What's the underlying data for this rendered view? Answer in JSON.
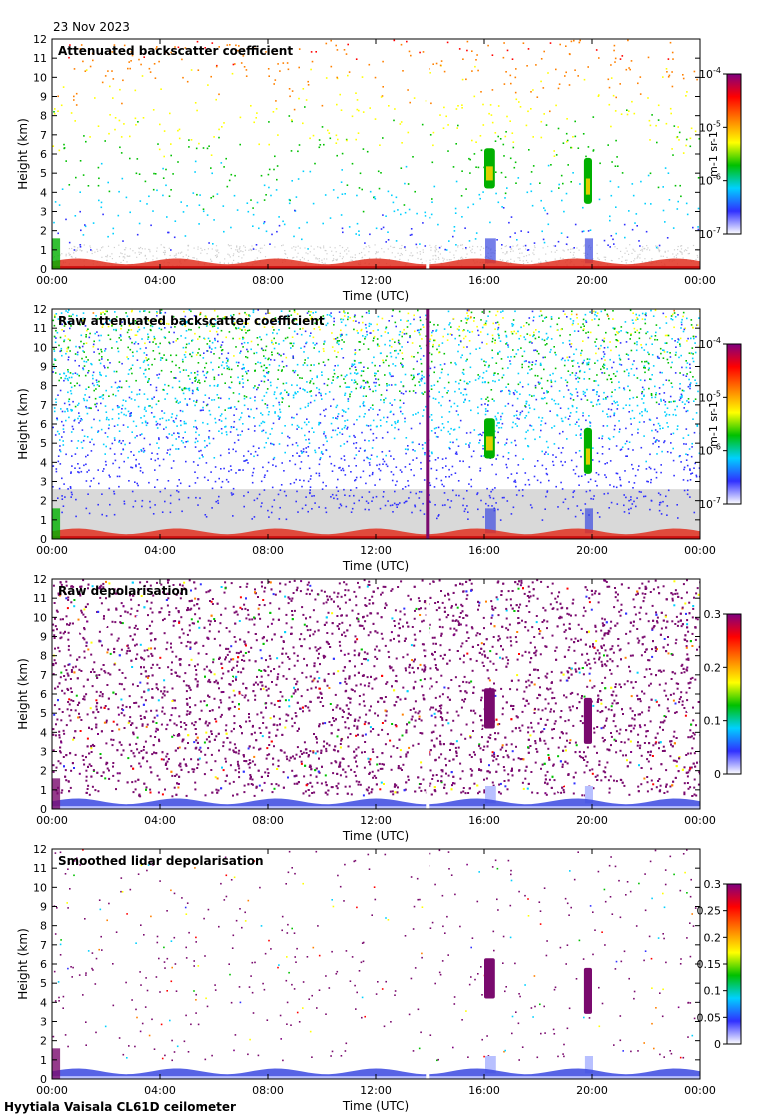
{
  "date": "23 Nov 2023",
  "footer": "Hyytiala Vaisala CL61D ceilometer",
  "colors": {
    "cloud_green": "#00b000",
    "cloud_yellow": "#e0d000",
    "depol_purple": "#7a0a6e",
    "background_gray": "#d9d9d9",
    "noise_blue": "#1f2fd8"
  },
  "chart_data": [
    {
      "type": "heatmap",
      "title": "Attenuated backscatter coefficient",
      "xlabel": "Time (UTC)",
      "ylabel": "Height (km)",
      "x_ticks": [
        "00:00",
        "04:00",
        "08:00",
        "12:00",
        "16:00",
        "20:00",
        "00:00"
      ],
      "y_ticks": [
        "0",
        "1",
        "2",
        "3",
        "4",
        "5",
        "6",
        "7",
        "8",
        "9",
        "10",
        "11",
        "12"
      ],
      "ylim": [
        0,
        12
      ],
      "xlim_hours": [
        0,
        24
      ],
      "colorbar": {
        "scale": "log",
        "ticks": [
          "10-7",
          "10-6",
          "10-5",
          "10-4"
        ],
        "tick_values": [
          1e-07,
          1e-06,
          1e-05,
          0.0001
        ],
        "label": "m-1 sr-1",
        "palette": [
          "#ffffff",
          "#3030ff",
          "#00d0ff",
          "#00c000",
          "#ffff00",
          "#ff8000",
          "#ff0000",
          "#800080"
        ]
      },
      "features": [
        {
          "kind": "cloud",
          "t_start_h": 16.0,
          "t_end_h": 16.4,
          "z_bottom_km": 4.2,
          "z_top_km": 6.3
        },
        {
          "kind": "cloud",
          "t_start_h": 19.7,
          "t_end_h": 20.0,
          "z_bottom_km": 3.4,
          "z_top_km": 5.8
        },
        {
          "kind": "boundary_layer",
          "z_top_km": 0.4
        },
        {
          "kind": "data_gap",
          "t_h": 13.9
        }
      ]
    },
    {
      "type": "heatmap",
      "title": "Raw attenuated backscatter coefficient",
      "xlabel": "Time (UTC)",
      "ylabel": "Height (km)",
      "x_ticks": [
        "00:00",
        "04:00",
        "08:00",
        "12:00",
        "16:00",
        "20:00",
        "00:00"
      ],
      "y_ticks": [
        "0",
        "1",
        "2",
        "3",
        "4",
        "5",
        "6",
        "7",
        "8",
        "9",
        "10",
        "11",
        "12"
      ],
      "ylim": [
        0,
        12
      ],
      "xlim_hours": [
        0,
        24
      ],
      "colorbar": {
        "scale": "log",
        "ticks": [
          "10-7",
          "10-6",
          "10-5",
          "10-4"
        ],
        "tick_values": [
          1e-07,
          1e-06,
          1e-05,
          0.0001
        ],
        "label": "m-1 sr-1",
        "palette": [
          "#ffffff",
          "#3030ff",
          "#00d0ff",
          "#00c000",
          "#ffff00",
          "#ff8000",
          "#ff0000",
          "#800080"
        ]
      },
      "features": [
        {
          "kind": "cloud",
          "t_start_h": 16.0,
          "t_end_h": 16.4,
          "z_bottom_km": 4.2,
          "z_top_km": 6.3
        },
        {
          "kind": "cloud",
          "t_start_h": 19.7,
          "t_end_h": 20.0,
          "z_bottom_km": 3.4,
          "z_top_km": 5.8
        },
        {
          "kind": "boundary_layer",
          "z_top_km": 0.4
        },
        {
          "kind": "spike",
          "t_h": 13.9
        }
      ]
    },
    {
      "type": "heatmap",
      "title": "Raw depolarisation",
      "xlabel": "Time (UTC)",
      "ylabel": "Height (km)",
      "x_ticks": [
        "00:00",
        "04:00",
        "08:00",
        "12:00",
        "16:00",
        "20:00",
        "00:00"
      ],
      "y_ticks": [
        "0",
        "1",
        "2",
        "3",
        "4",
        "5",
        "6",
        "7",
        "8",
        "9",
        "10",
        "11",
        "12"
      ],
      "ylim": [
        0,
        12
      ],
      "xlim_hours": [
        0,
        24
      ],
      "colorbar": {
        "scale": "linear",
        "ticks": [
          "0",
          "0.1",
          "0.2",
          "0.3"
        ],
        "tick_values": [
          0,
          0.1,
          0.2,
          0.3
        ],
        "label": "",
        "palette": [
          "#ffffff",
          "#3030ff",
          "#00d0ff",
          "#00c000",
          "#ffff00",
          "#ff8000",
          "#ff0000",
          "#800080"
        ]
      },
      "features": [
        {
          "kind": "cloud",
          "t_start_h": 16.0,
          "t_end_h": 16.4,
          "z_bottom_km": 4.2,
          "z_top_km": 6.3
        },
        {
          "kind": "cloud",
          "t_start_h": 19.7,
          "t_end_h": 20.0,
          "z_bottom_km": 3.4,
          "z_top_km": 5.8
        },
        {
          "kind": "boundary_layer",
          "z_top_km": 0.4
        },
        {
          "kind": "data_gap",
          "t_h": 13.9
        }
      ]
    },
    {
      "type": "heatmap",
      "title": "Smoothed lidar depolarisation",
      "xlabel": "Time (UTC)",
      "ylabel": "Height (km)",
      "x_ticks": [
        "00:00",
        "04:00",
        "08:00",
        "12:00",
        "16:00",
        "20:00",
        "00:00"
      ],
      "y_ticks": [
        "0",
        "1",
        "2",
        "3",
        "4",
        "5",
        "6",
        "7",
        "8",
        "9",
        "10",
        "11",
        "12"
      ],
      "ylim": [
        0,
        12
      ],
      "xlim_hours": [
        0,
        24
      ],
      "colorbar": {
        "scale": "linear",
        "ticks": [
          "0",
          "0.05",
          "0.1",
          "0.15",
          "0.2",
          "0.25",
          "0.3"
        ],
        "tick_values": [
          0,
          0.05,
          0.1,
          0.15,
          0.2,
          0.25,
          0.3
        ],
        "label": "",
        "palette": [
          "#ffffff",
          "#3030ff",
          "#00d0ff",
          "#00c000",
          "#ffff00",
          "#ff8000",
          "#ff0000",
          "#800080"
        ]
      },
      "features": [
        {
          "kind": "cloud",
          "t_start_h": 16.0,
          "t_end_h": 16.4,
          "z_bottom_km": 4.2,
          "z_top_km": 6.3
        },
        {
          "kind": "cloud",
          "t_start_h": 19.7,
          "t_end_h": 20.0,
          "z_bottom_km": 3.4,
          "z_top_km": 5.8
        },
        {
          "kind": "boundary_layer",
          "z_top_km": 0.4
        },
        {
          "kind": "data_gap",
          "t_h": 13.9
        }
      ]
    }
  ]
}
